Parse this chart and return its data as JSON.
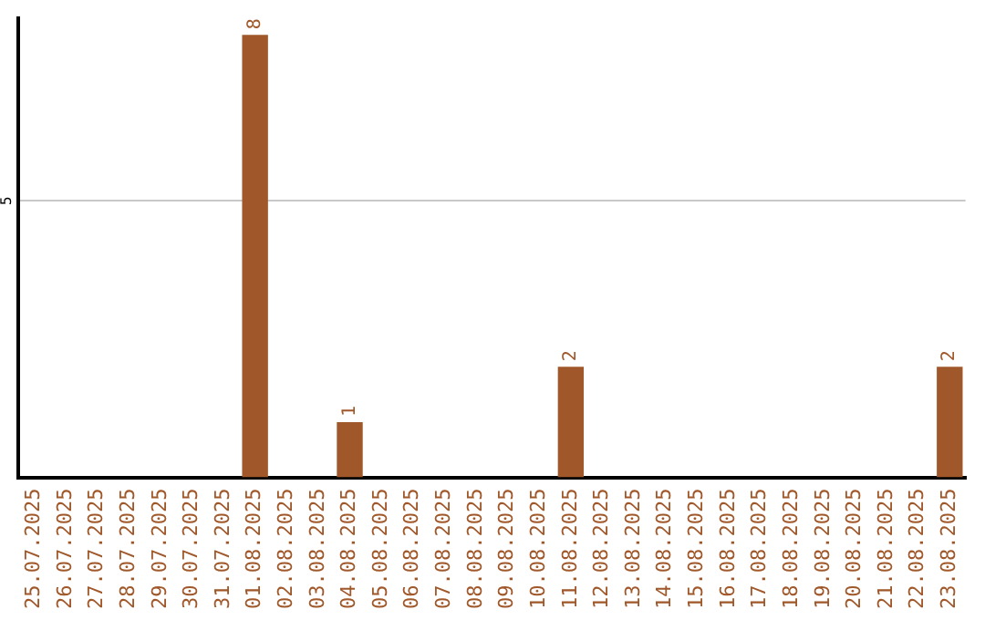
{
  "chart_data": {
    "type": "bar",
    "categories": [
      "25.07.2025",
      "26.07.2025",
      "27.07.2025",
      "28.07.2025",
      "29.07.2025",
      "30.07.2025",
      "31.07.2025",
      "01.08.2025",
      "02.08.2025",
      "03.08.2025",
      "04.08.2025",
      "05.08.2025",
      "06.08.2025",
      "07.08.2025",
      "08.08.2025",
      "09.08.2025",
      "10.08.2025",
      "11.08.2025",
      "12.08.2025",
      "13.08.2025",
      "14.08.2025",
      "15.08.2025",
      "16.08.2025",
      "17.08.2025",
      "18.08.2025",
      "19.08.2025",
      "20.08.2025",
      "21.08.2025",
      "22.08.2025",
      "23.08.2025"
    ],
    "values": [
      0,
      0,
      0,
      0,
      0,
      0,
      0,
      8,
      0,
      0,
      1,
      0,
      0,
      0,
      0,
      0,
      0,
      2,
      0,
      0,
      0,
      0,
      0,
      0,
      0,
      0,
      0,
      0,
      0,
      2
    ],
    "value_labels": [
      null,
      null,
      null,
      null,
      null,
      null,
      null,
      "8",
      null,
      null,
      "1",
      null,
      null,
      null,
      null,
      null,
      null,
      "2",
      null,
      null,
      null,
      null,
      null,
      null,
      null,
      null,
      null,
      null,
      null,
      "2"
    ],
    "color": "#a0582a",
    "ylim": [
      0,
      8.3
    ],
    "yticks": [
      5
    ],
    "grid": "y",
    "legend": false
  }
}
